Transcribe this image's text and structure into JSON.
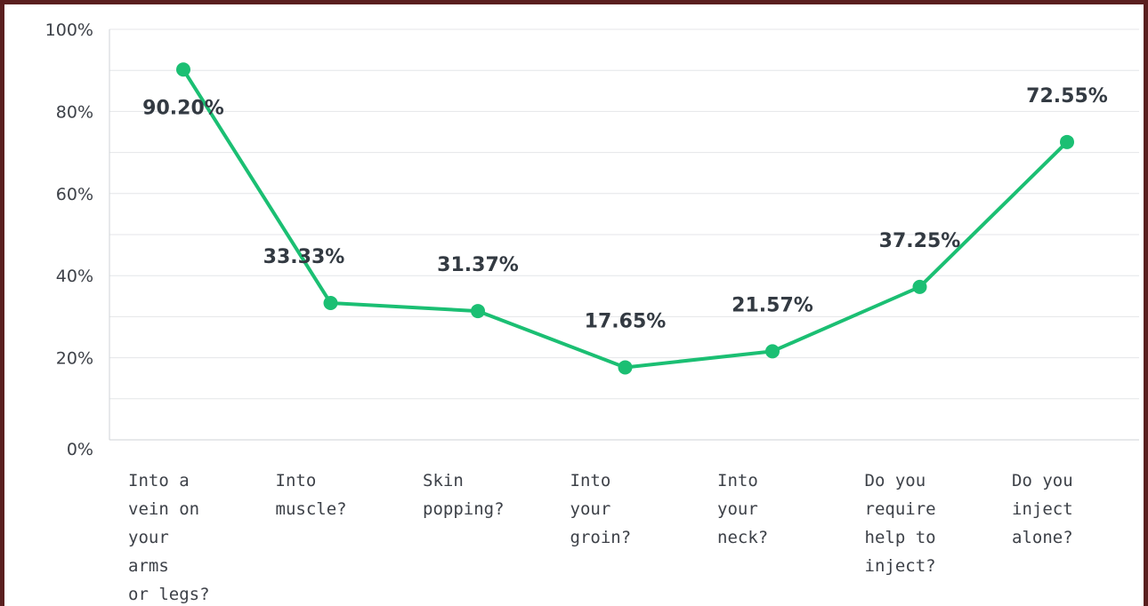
{
  "chart_data": {
    "type": "line",
    "categories": [
      [
        "Into a",
        "vein on",
        "your",
        "arms",
        "or legs?"
      ],
      [
        "Into",
        "muscle?"
      ],
      [
        "Skin",
        "popping?"
      ],
      [
        "Into",
        "your",
        "groin?"
      ],
      [
        "Into",
        "your",
        "neck?"
      ],
      [
        "Do you",
        "require",
        "help to",
        "inject?"
      ],
      [
        "Do you",
        "inject",
        "alone?"
      ]
    ],
    "values": [
      90.2,
      33.33,
      31.37,
      17.65,
      21.57,
      37.25,
      72.55
    ],
    "data_labels": [
      "90.20%",
      "33.33%",
      "31.37%",
      "17.65%",
      "21.57%",
      "37.25%",
      "72.55%"
    ],
    "y_ticks": [
      "0%",
      "20%",
      "40%",
      "60%",
      "80%",
      "100%"
    ],
    "ylim": [
      0,
      100
    ],
    "grid": true,
    "line_color": "#1bbf73"
  }
}
